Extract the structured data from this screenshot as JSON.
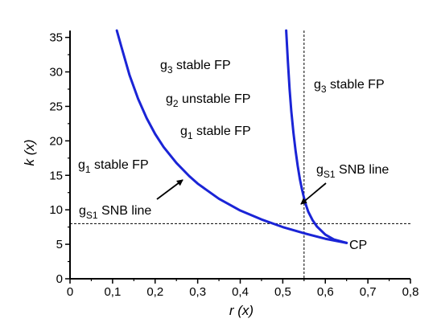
{
  "chart_data": {
    "type": "line",
    "xlabel": "r (x)",
    "ylabel": "k (x)",
    "xlim": [
      0,
      0.8
    ],
    "ylim": [
      0,
      36
    ],
    "xticks": [
      0,
      0.1,
      0.2,
      0.3,
      0.4,
      0.5,
      0.6,
      0.7,
      0.8
    ],
    "xtick_labels": [
      "0",
      "0,1",
      "0,2",
      "0,3",
      "0,4",
      "0,5",
      "0,6",
      "0,7",
      "0,8"
    ],
    "yticks": [
      0,
      5,
      10,
      15,
      20,
      25,
      30,
      35
    ],
    "ytick_labels": [
      "0",
      "5",
      "10",
      "15",
      "20",
      "25",
      "30",
      "35"
    ],
    "series": [
      {
        "color": "#1a24d6",
        "x": [
          0.11,
          0.12,
          0.14,
          0.16,
          0.18,
          0.2,
          0.22,
          0.25,
          0.28,
          0.3,
          0.35,
          0.4,
          0.45,
          0.5,
          0.55,
          0.6,
          0.65
        ],
        "y": [
          36,
          33.8,
          29.5,
          26.1,
          23.3,
          21.0,
          19.1,
          16.8,
          14.9,
          13.8,
          11.6,
          9.9,
          8.6,
          7.5,
          6.6,
          5.8,
          5.2
        ]
      },
      {
        "color": "#1a24d6",
        "x": [
          0.508,
          0.512,
          0.516,
          0.52,
          0.525,
          0.53,
          0.535,
          0.54,
          0.545,
          0.55,
          0.555,
          0.56,
          0.57,
          0.58,
          0.6,
          0.62,
          0.65
        ],
        "y": [
          36,
          31.5,
          27.5,
          24.3,
          21.2,
          18.6,
          16.4,
          14.5,
          13.0,
          11.7,
          10.6,
          9.7,
          8.5,
          7.6,
          6.4,
          5.7,
          5.2
        ]
      }
    ],
    "reference_lines": [
      {
        "orientation": "horizontal",
        "value": 8,
        "style": "dashed"
      },
      {
        "orientation": "vertical",
        "value": 0.55,
        "style": "dashed"
      }
    ],
    "annotations": {
      "g3_stable_left": {
        "base": "g",
        "sub": "3",
        "rest": " stable FP"
      },
      "g2_unstable": {
        "base": "g",
        "sub": "2",
        "rest": " unstable FP"
      },
      "g1_stable_mid": {
        "base": "g",
        "sub": "1",
        "rest": " stable FP"
      },
      "g1_stable_left": {
        "base": "g",
        "sub": "1",
        "rest": " stable FP"
      },
      "gS1_snb_left": {
        "base": "g",
        "sub": "S1",
        "rest": " SNB line"
      },
      "g3_stable_right": {
        "base": "g",
        "sub": "3",
        "rest": " stable FP"
      },
      "gS1_snb_right": {
        "base": "g",
        "sub": "S1",
        "rest": " SNB line"
      },
      "cp": "CP"
    }
  }
}
